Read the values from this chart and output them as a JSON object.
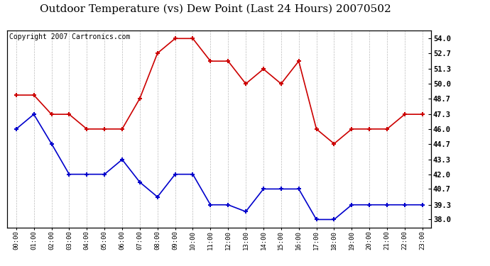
{
  "title": "Outdoor Temperature (vs) Dew Point (Last 24 Hours) 20070502",
  "copyright": "Copyright 2007 Cartronics.com",
  "hours": [
    "00:00",
    "01:00",
    "02:00",
    "03:00",
    "04:00",
    "05:00",
    "06:00",
    "07:00",
    "08:00",
    "09:00",
    "10:00",
    "11:00",
    "12:00",
    "13:00",
    "14:00",
    "15:00",
    "16:00",
    "17:00",
    "18:00",
    "19:00",
    "20:00",
    "21:00",
    "22:00",
    "23:00"
  ],
  "temp": [
    49.0,
    49.0,
    47.3,
    47.3,
    46.0,
    46.0,
    46.0,
    48.7,
    52.7,
    54.0,
    54.0,
    52.0,
    52.0,
    50.0,
    51.3,
    50.0,
    52.0,
    46.0,
    44.7,
    46.0,
    46.0,
    46.0,
    47.3,
    47.3
  ],
  "dewpoint": [
    46.0,
    47.3,
    44.7,
    42.0,
    42.0,
    42.0,
    43.3,
    41.3,
    40.0,
    42.0,
    42.0,
    39.3,
    39.3,
    38.7,
    40.7,
    40.7,
    40.7,
    38.0,
    38.0,
    39.3,
    39.3,
    39.3,
    39.3,
    39.3
  ],
  "temp_color": "#cc0000",
  "dew_color": "#0000cc",
  "bg_color": "#ffffff",
  "grid_color": "#bbbbbb",
  "yticks": [
    38.0,
    39.3,
    40.7,
    42.0,
    43.3,
    44.7,
    46.0,
    47.3,
    48.7,
    50.0,
    51.3,
    52.7,
    54.0
  ],
  "ylim_min": 37.3,
  "ylim_max": 54.7,
  "title_fontsize": 11,
  "copyright_fontsize": 7
}
